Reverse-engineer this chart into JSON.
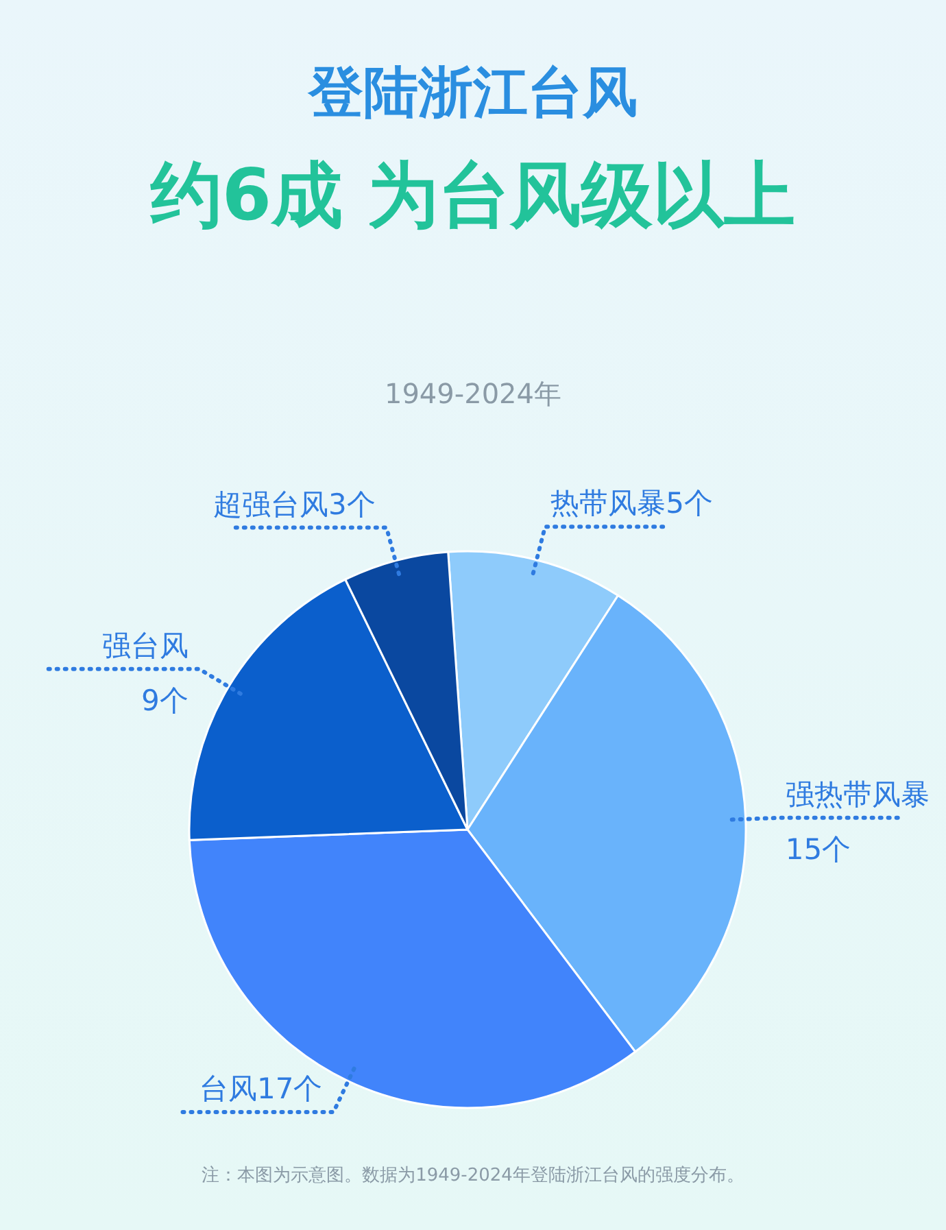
{
  "chart_data": {
    "type": "pie",
    "title": "登陆浙江台风",
    "subtitle": "约6成 为台风级以上",
    "categories": [
      "热带风暴",
      "强热带风暴",
      "台风",
      "强台风",
      "超强台风"
    ],
    "values": [
      5,
      15,
      17,
      9,
      3
    ],
    "value_labels": [
      "5个",
      "15个",
      "17个",
      "9个",
      "3个"
    ],
    "colors": [
      "#8ecbfb",
      "#69b3fb",
      "#4184fb",
      "#0b5fcc",
      "#0a48a0"
    ],
    "legend": false,
    "annotations": [
      "1949-2024年",
      "注：本图为示意图。数据为1949-2024年登陆浙江台风的强度分布。"
    ]
  }
}
